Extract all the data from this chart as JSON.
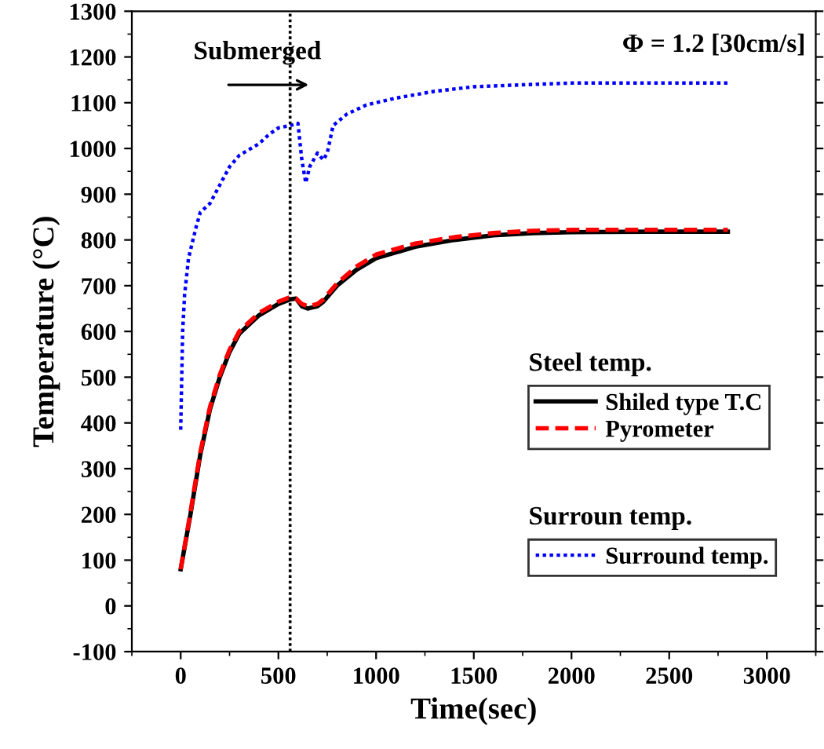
{
  "chart_data": {
    "type": "line",
    "xlabel": "Time(sec)",
    "ylabel": "Temperature (°C)",
    "xlim": [
      -250,
      3250
    ],
    "xticks": [
      0,
      500,
      1000,
      1500,
      2000,
      2500,
      3000
    ],
    "ylim": [
      -100,
      1300
    ],
    "yticks": [
      -100,
      0,
      100,
      200,
      300,
      400,
      500,
      600,
      700,
      800,
      900,
      1000,
      1100,
      1200,
      1300
    ],
    "grid": false,
    "legend": "right",
    "marker": "none",
    "series": [
      {
        "name": "Shiled type T.C",
        "color": "#000000",
        "line_style": "solid",
        "x": [
          0,
          50,
          100,
          150,
          200,
          250,
          300,
          400,
          500,
          560,
          590,
          620,
          650,
          700,
          730,
          800,
          900,
          1000,
          1200,
          1400,
          1600,
          1800,
          2000,
          2400,
          2800
        ],
        "values": [
          80,
          200,
          330,
          430,
          500,
          555,
          595,
          635,
          660,
          670,
          672,
          655,
          650,
          655,
          665,
          700,
          735,
          760,
          785,
          800,
          810,
          815,
          817,
          818,
          818
        ]
      },
      {
        "name": "Pyrometer",
        "color": "#ff0000",
        "line_style": "dashed",
        "x": [
          0,
          50,
          100,
          150,
          200,
          250,
          300,
          400,
          500,
          560,
          590,
          620,
          650,
          700,
          730,
          800,
          900,
          1000,
          1200,
          1400,
          1600,
          1800,
          2000,
          2400,
          2800
        ],
        "values": [
          80,
          205,
          335,
          435,
          505,
          560,
          600,
          640,
          665,
          675,
          672,
          660,
          655,
          660,
          670,
          705,
          742,
          768,
          792,
          806,
          815,
          820,
          822,
          822,
          822
        ]
      },
      {
        "name": "Surround temp.",
        "color": "#0000ff",
        "line_style": "dotted",
        "x": [
          0,
          10,
          20,
          40,
          80,
          100,
          150,
          200,
          250,
          300,
          400,
          450,
          500,
          560,
          600,
          620,
          640,
          660,
          700,
          730,
          750,
          780,
          850,
          950,
          1100,
          1300,
          1500,
          1800,
          2000,
          2400,
          2800
        ],
        "values": [
          385,
          600,
          680,
          760,
          830,
          860,
          880,
          920,
          960,
          985,
          1010,
          1030,
          1045,
          1050,
          1055,
          975,
          925,
          960,
          990,
          975,
          990,
          1050,
          1075,
          1095,
          1110,
          1125,
          1135,
          1140,
          1143,
          1143,
          1143
        ]
      }
    ],
    "ref_lines": [
      {
        "axis": "x",
        "value": 560,
        "color": "#000000",
        "line_style": "dotted"
      }
    ],
    "annotations": [
      "Submerged",
      "Φ = 1.2 [30cm/s]",
      "Steel temp.",
      "Surroun temp."
    ]
  }
}
